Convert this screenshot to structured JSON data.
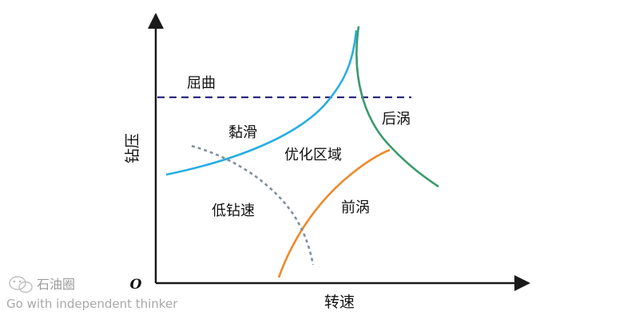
{
  "axes": {
    "x_label": "转速",
    "y_label": "钻压",
    "origin": "O"
  },
  "regions": {
    "buckling": "屈曲",
    "stick_slip": "黏滑",
    "optimized": "优化区域",
    "backward_whirl": "后涡",
    "forward_whirl": "前涡",
    "low_rop": "低钻速"
  },
  "watermark": {
    "brand": "石油圈",
    "slogan": "Go with independent thinker"
  },
  "colors": {
    "axis": "#1a1a1a",
    "buckling_line": "#2b2a7a",
    "stick_slip_curve": "#27aee3",
    "backward_whirl_curve": "#3a9a6e",
    "forward_whirl_curve": "#ee8a2b",
    "low_rop_curve": "#7f8f99"
  }
}
